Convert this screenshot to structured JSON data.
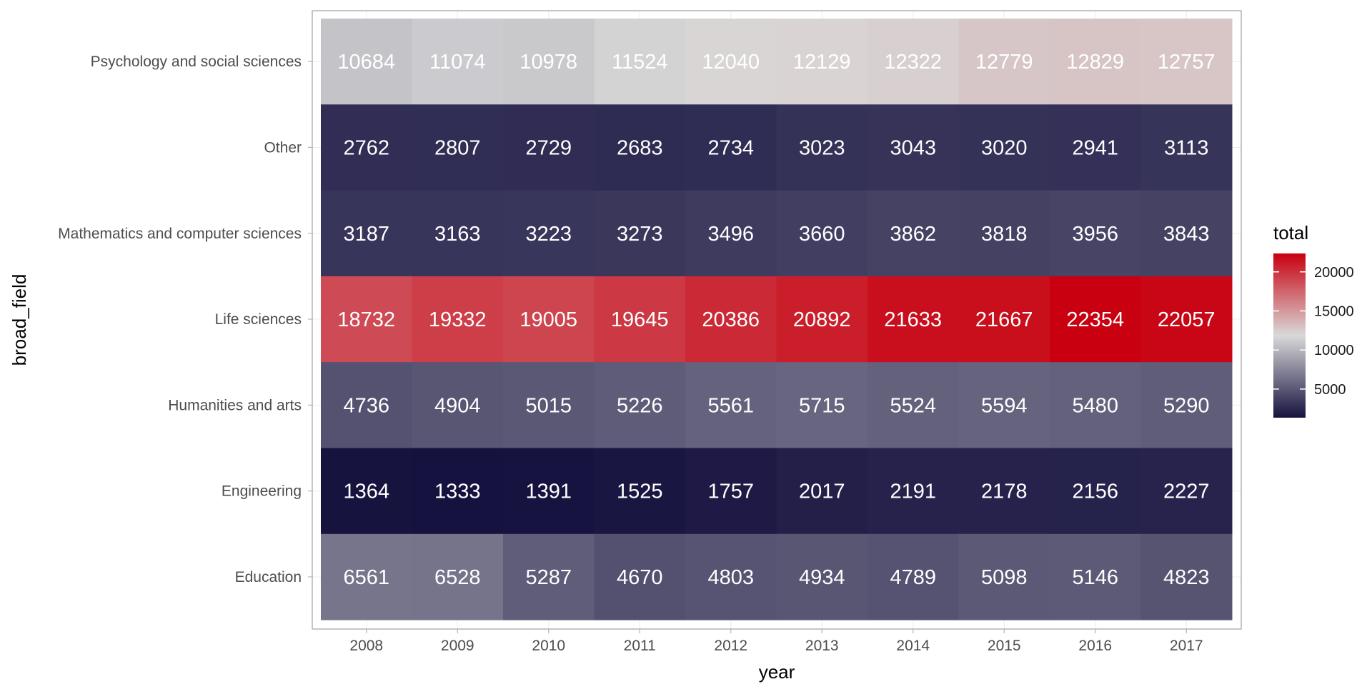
{
  "chart_data": {
    "type": "heatmap",
    "xlabel": "year",
    "ylabel": "broad_field",
    "x": [
      "2008",
      "2009",
      "2010",
      "2011",
      "2012",
      "2013",
      "2014",
      "2015",
      "2016",
      "2017"
    ],
    "y": [
      "Psychology and social sciences",
      "Other",
      "Mathematics and computer sciences",
      "Life sciences",
      "Humanities and arts",
      "Engineering",
      "Education"
    ],
    "values": [
      [
        10684,
        11074,
        10978,
        11524,
        12040,
        12129,
        12322,
        12779,
        12829,
        12757
      ],
      [
        2762,
        2807,
        2729,
        2683,
        2734,
        3023,
        3043,
        3020,
        2941,
        3113
      ],
      [
        3187,
        3163,
        3223,
        3273,
        3496,
        3660,
        3862,
        3818,
        3956,
        3843
      ],
      [
        18732,
        19332,
        19005,
        19645,
        20386,
        20892,
        21633,
        21667,
        22354,
        22057
      ],
      [
        4736,
        4904,
        5015,
        5226,
        5561,
        5715,
        5524,
        5594,
        5480,
        5290
      ],
      [
        1364,
        1333,
        1391,
        1525,
        1757,
        2017,
        2191,
        2178,
        2156,
        2227
      ],
      [
        6561,
        6528,
        5287,
        4670,
        4803,
        4934,
        4789,
        5098,
        5146,
        4823
      ]
    ],
    "legend": {
      "title": "total",
      "position": "right",
      "ticks": [
        5000,
        10000,
        15000,
        20000
      ],
      "range": [
        1333,
        22354
      ]
    },
    "colors": {
      "low": "#16123f",
      "mid": "#d9d9d9",
      "high": "#c8000f",
      "cell_text": "#ffffff",
      "grid": "#ebebeb",
      "panel_border": "#b3b3b3"
    },
    "grid": true
  }
}
